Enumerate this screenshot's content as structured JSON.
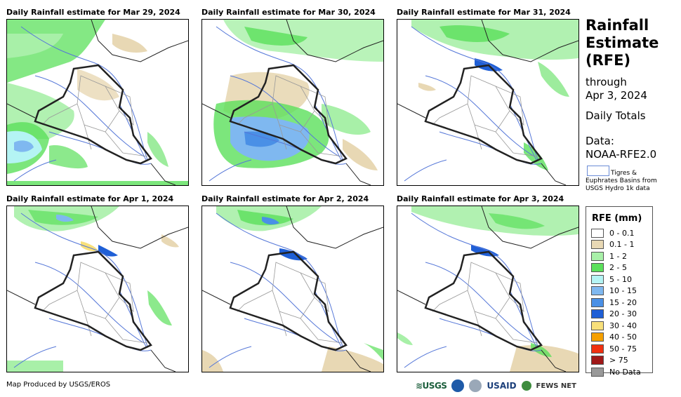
{
  "panels": [
    {
      "title": "Daily Rainfall estimate for Mar 29, 2024"
    },
    {
      "title": "Daily Rainfall estimate for Mar 30, 2024"
    },
    {
      "title": "Daily Rainfall estimate for Mar 31, 2024"
    },
    {
      "title": "Daily Rainfall estimate for Apr 1, 2024"
    },
    {
      "title": "Daily Rainfall estimate for Apr 2, 2024"
    },
    {
      "title": "Daily Rainfall estimate for Apr 3, 2024"
    }
  ],
  "sidebar": {
    "title_line1": "Rainfall",
    "title_line2": "Estimate",
    "title_line3": "(RFE)",
    "through": "through",
    "date": "Apr 3, 2024",
    "totals": "Daily Totals",
    "data_label": "Data:",
    "data_source": "NOAA-RFE2.0",
    "basin_line1": "Tigres &",
    "basin_line2": "Euphrates Basins from",
    "basin_line3": "USGS Hydro 1k data"
  },
  "legend": {
    "title": "RFE (mm)",
    "items": [
      {
        "label": "0 - 0.1",
        "color": "#ffffff"
      },
      {
        "label": "0.1 - 1",
        "color": "#e8d8b4"
      },
      {
        "label": "1 - 2",
        "color": "#a8f0a8"
      },
      {
        "label": "2 - 5",
        "color": "#5be05b"
      },
      {
        "label": "5 - 10",
        "color": "#b4f4f4"
      },
      {
        "label": "10 - 15",
        "color": "#7fb8f0"
      },
      {
        "label": "15 - 20",
        "color": "#4a90e6"
      },
      {
        "label": "20 - 30",
        "color": "#1f5fd6"
      },
      {
        "label": "30 - 40",
        "color": "#f8e07a"
      },
      {
        "label": "40 - 50",
        "color": "#f5a000"
      },
      {
        "label": "50 - 75",
        "color": "#f03010"
      },
      {
        "label": "> 75",
        "color": "#a01818"
      },
      {
        "label": "No Data",
        "color": "#999999"
      }
    ]
  },
  "footer": {
    "credit": "Map Produced by USGS/EROS",
    "logo_usgs": "≋USGS",
    "logo_usaid": "USAID",
    "logo_fews": "FEWS NET"
  }
}
